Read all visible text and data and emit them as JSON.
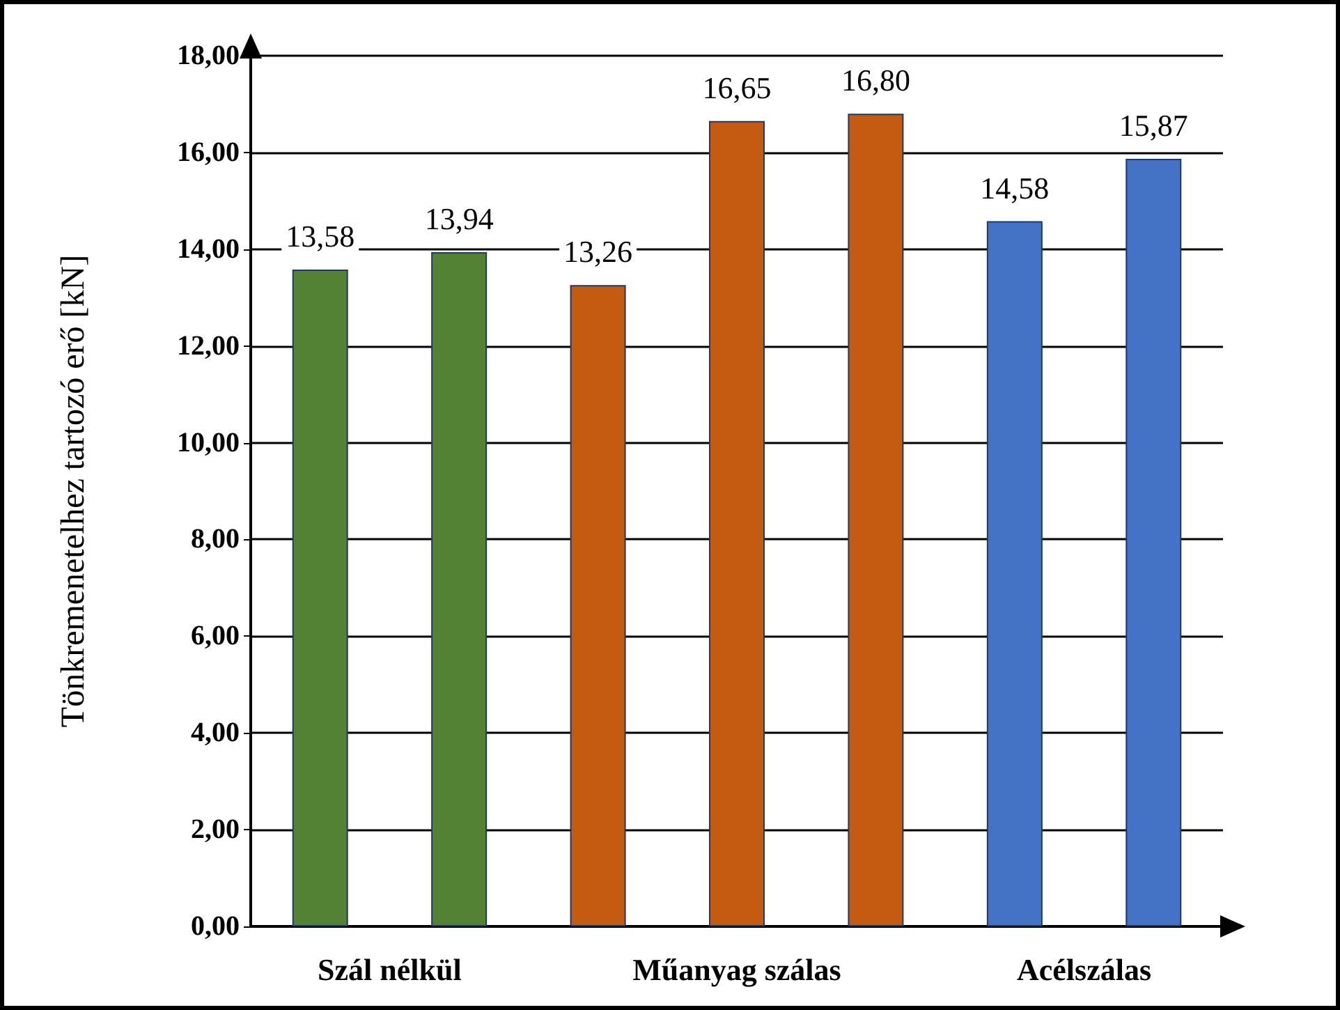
{
  "chart_data": {
    "type": "bar",
    "ylabel": "Tönkremenetelhez tartozó erő [kN]",
    "categories": [
      null,
      null,
      null,
      null,
      null,
      null,
      null
    ],
    "values": [
      13.58,
      13.94,
      13.26,
      16.65,
      16.8,
      14.58,
      15.87
    ],
    "colors": [
      "#548235",
      "#548235",
      "#c55a11",
      "#c55a11",
      "#c55a11",
      "#4472c4",
      "#4472c4"
    ],
    "value_labels": [
      "13,58",
      "13,94",
      "13,26",
      "16,65",
      "16,80",
      "14,58",
      "15,87"
    ],
    "annotations": [
      "Szál nélkül",
      "Műanyag szálas",
      "Acélszálas"
    ],
    "ylim": [
      0,
      18
    ],
    "yticks": [
      {
        "value": 0,
        "label": "0,00"
      },
      {
        "value": 2,
        "label": "2,00"
      },
      {
        "value": 4,
        "label": "4,00"
      },
      {
        "value": 6,
        "label": "6,00"
      },
      {
        "value": 8,
        "label": "8,00"
      },
      {
        "value": 10,
        "label": "10,00"
      },
      {
        "value": 12,
        "label": "12,00"
      },
      {
        "value": 14,
        "label": "14,00"
      },
      {
        "value": 16,
        "label": "16,00"
      },
      {
        "value": 18,
        "label": "18,00"
      }
    ],
    "grid": "y"
  }
}
